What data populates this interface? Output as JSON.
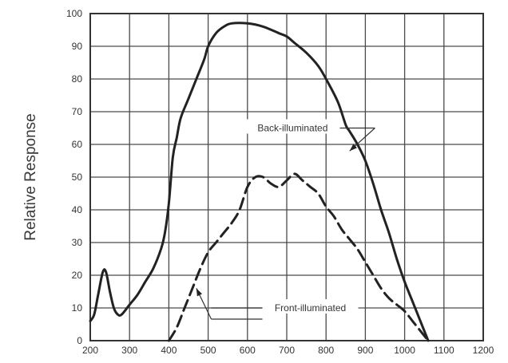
{
  "chart_data": {
    "type": "line",
    "title": "",
    "xlabel": "",
    "ylabel": "Relative Response",
    "xlim": [
      200,
      1200
    ],
    "ylim": [
      0,
      100
    ],
    "grid": true,
    "x_ticks": [
      200,
      300,
      400,
      500,
      600,
      700,
      800,
      900,
      1000,
      1100,
      1200
    ],
    "y_ticks": [
      0,
      10,
      20,
      30,
      40,
      50,
      60,
      70,
      80,
      90,
      100
    ],
    "series": [
      {
        "name": "Back-illuminated",
        "style": "solid",
        "color": "#222222",
        "points": [
          [
            200,
            6
          ],
          [
            210,
            8
          ],
          [
            220,
            14
          ],
          [
            232,
            21
          ],
          [
            240,
            21
          ],
          [
            250,
            15
          ],
          [
            260,
            10
          ],
          [
            270,
            8
          ],
          [
            280,
            8
          ],
          [
            300,
            11
          ],
          [
            320,
            14
          ],
          [
            340,
            18
          ],
          [
            360,
            22
          ],
          [
            380,
            28
          ],
          [
            390,
            33
          ],
          [
            400,
            42
          ],
          [
            410,
            56
          ],
          [
            420,
            62
          ],
          [
            430,
            68
          ],
          [
            450,
            74
          ],
          [
            470,
            80
          ],
          [
            490,
            86
          ],
          [
            500,
            90
          ],
          [
            520,
            94
          ],
          [
            540,
            96
          ],
          [
            560,
            97
          ],
          [
            600,
            97
          ],
          [
            640,
            96
          ],
          [
            680,
            94
          ],
          [
            700,
            93
          ],
          [
            720,
            91
          ],
          [
            750,
            88
          ],
          [
            780,
            84
          ],
          [
            800,
            80
          ],
          [
            830,
            73
          ],
          [
            850,
            66
          ],
          [
            860,
            64
          ],
          [
            880,
            60
          ],
          [
            900,
            55
          ],
          [
            920,
            48
          ],
          [
            940,
            40
          ],
          [
            960,
            33
          ],
          [
            980,
            25
          ],
          [
            1000,
            18
          ],
          [
            1020,
            12
          ],
          [
            1040,
            6
          ],
          [
            1060,
            0
          ]
        ]
      },
      {
        "name": "Front-illuminated",
        "style": "dashed",
        "color": "#222222",
        "points": [
          [
            400,
            0
          ],
          [
            420,
            4
          ],
          [
            440,
            10
          ],
          [
            460,
            16
          ],
          [
            480,
            22
          ],
          [
            500,
            27
          ],
          [
            520,
            30
          ],
          [
            540,
            33
          ],
          [
            560,
            36
          ],
          [
            580,
            40
          ],
          [
            600,
            47
          ],
          [
            620,
            50
          ],
          [
            640,
            50
          ],
          [
            660,
            48
          ],
          [
            680,
            47
          ],
          [
            700,
            49
          ],
          [
            720,
            51
          ],
          [
            740,
            49
          ],
          [
            760,
            47
          ],
          [
            780,
            45
          ],
          [
            800,
            41
          ],
          [
            820,
            38
          ],
          [
            840,
            34
          ],
          [
            860,
            31
          ],
          [
            880,
            28
          ],
          [
            900,
            24
          ],
          [
            920,
            20
          ],
          [
            940,
            16
          ],
          [
            960,
            13
          ],
          [
            980,
            11
          ],
          [
            1000,
            9
          ],
          [
            1020,
            6
          ],
          [
            1040,
            3
          ],
          [
            1060,
            0
          ]
        ]
      }
    ],
    "annotations": [
      {
        "text": "Back-illuminated",
        "x": 715,
        "y": 65,
        "arrow_to": [
          860,
          58
        ]
      },
      {
        "text": "Front-illuminated",
        "x": 760,
        "y": 10,
        "arrow_to": [
          470,
          16
        ]
      }
    ]
  }
}
